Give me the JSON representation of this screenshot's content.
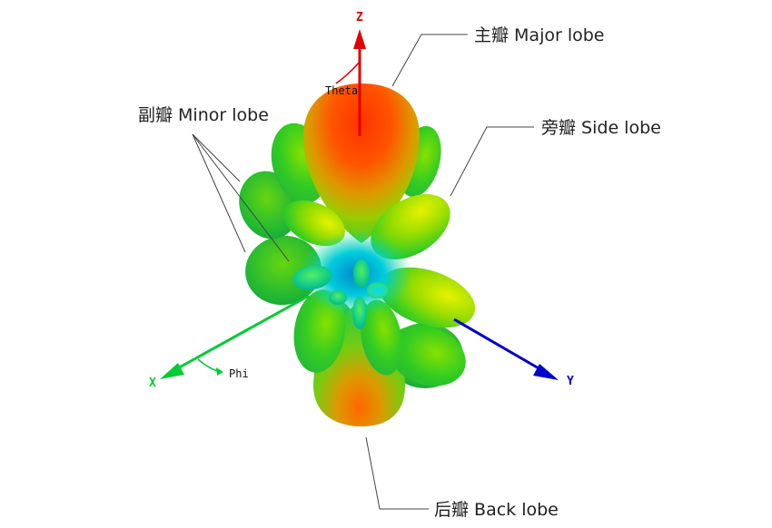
{
  "callouts": {
    "major_lobe": "主瓣 Major lobe",
    "side_lobe": "旁瓣 Side lobe",
    "minor_lobe": "副瓣 Minor lobe",
    "back_lobe": "后瓣 Back lobe"
  },
  "axes": {
    "z": {
      "label": "Z",
      "color": "#e00000"
    },
    "y": {
      "label": "Y",
      "color": "#0000cc"
    },
    "x": {
      "label": "X",
      "color": "#00cc33"
    }
  },
  "angles": {
    "theta": "Theta",
    "phi": "Phi"
  },
  "colors": {
    "high": "#ff2a00",
    "mid_high": "#ccee00",
    "mid": "#33dd22",
    "low": "#00ccdd",
    "leader": "#444444"
  }
}
